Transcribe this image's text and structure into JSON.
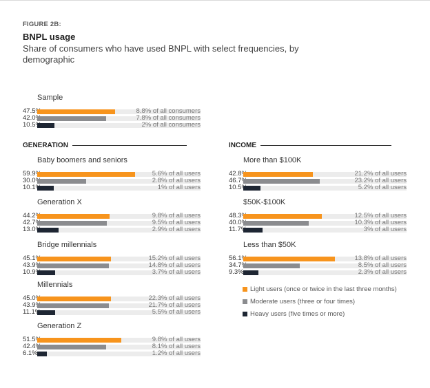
{
  "figure_label": "FIGURE 2B:",
  "title": "BNPL usage",
  "subtitle": "Share of consumers who have used BNPL with select frequencies, by demographic",
  "sections": {
    "generation": "GENERATION",
    "income": "INCOME"
  },
  "colors": {
    "light": "#f7941d",
    "moderate": "#8b8c8f",
    "heavy": "#1e2633",
    "track": "#ececec"
  },
  "legend": [
    {
      "label": "Light users (once or twice in the last three months)",
      "color": "#f7941d"
    },
    {
      "label": "Moderate users (three or four times)",
      "color": "#8b8c8f"
    },
    {
      "label": "Heavy users (five times or more)",
      "color": "#1e2633"
    }
  ],
  "chart_data": {
    "type": "bar",
    "series_names": [
      "Light users",
      "Moderate users",
      "Heavy users"
    ],
    "groups": [
      {
        "name": "Sample",
        "section": "",
        "values": [
          47.5,
          42.0,
          10.5
        ],
        "labels": [
          "47.5%",
          "42.0%",
          "10.5%"
        ],
        "notes": [
          "8.8% of all consumers",
          "7.8% of all consumers",
          "2% of all consumers"
        ]
      },
      {
        "name": "Baby boomers and seniors",
        "section": "GENERATION",
        "values": [
          59.9,
          30.0,
          10.1
        ],
        "labels": [
          "59.9%",
          "30.0%",
          "10.1%"
        ],
        "notes": [
          "5.6% of all users",
          "2.8% of all users",
          "1% of all users"
        ]
      },
      {
        "name": "Generation X",
        "section": "GENERATION",
        "values": [
          44.2,
          42.7,
          13.0
        ],
        "labels": [
          "44.2%",
          "42.7%",
          "13.0%"
        ],
        "notes": [
          "9.8% of all users",
          "9.5% of all users",
          "2.9% of all users"
        ]
      },
      {
        "name": "Bridge millennials",
        "section": "GENERATION",
        "values": [
          45.1,
          43.9,
          10.9
        ],
        "labels": [
          "45.1%",
          "43.9%",
          "10.9%"
        ],
        "notes": [
          "15.2% of all users",
          "14.8% of all users",
          "3.7% of all users"
        ]
      },
      {
        "name": "Millennials",
        "section": "GENERATION",
        "values": [
          45.0,
          43.9,
          11.1
        ],
        "labels": [
          "45.0%",
          "43.9%",
          "11.1%"
        ],
        "notes": [
          "22.3% of all users",
          "21.7% of all users",
          "5.5% of all users"
        ]
      },
      {
        "name": "Generation Z",
        "section": "GENERATION",
        "values": [
          51.5,
          42.4,
          6.1
        ],
        "labels": [
          "51.5%",
          "42.4%",
          "6.1%"
        ],
        "notes": [
          "9.8% of all users",
          "8.1% of all users",
          "1.2% of all users"
        ]
      },
      {
        "name": "More than $100K",
        "section": "INCOME",
        "values": [
          42.8,
          46.7,
          10.5
        ],
        "labels": [
          "42.8%",
          "46.7%",
          "10.5%"
        ],
        "notes": [
          "21.2% of all users",
          "23.2% of all users",
          "5.2% of all users"
        ]
      },
      {
        "name": "$50K-$100K",
        "section": "INCOME",
        "values": [
          48.3,
          40.0,
          11.7
        ],
        "labels": [
          "48.3%",
          "40.0%",
          "11.7%"
        ],
        "notes": [
          "12.5% of all users",
          "10.3% of all users",
          "3% of all users"
        ]
      },
      {
        "name": "Less than $50K",
        "section": "INCOME",
        "values": [
          56.1,
          34.7,
          9.3
        ],
        "labels": [
          "56.1%",
          "34.7%",
          "9.3%"
        ],
        "notes": [
          "13.8% of all users",
          "8.5% of all users",
          "2.3% of all users"
        ]
      }
    ],
    "xlim": [
      0,
      100
    ]
  }
}
